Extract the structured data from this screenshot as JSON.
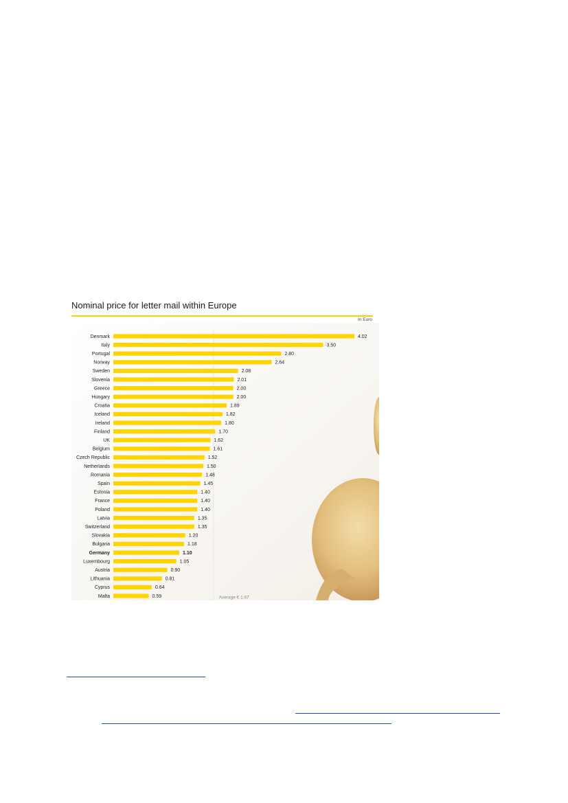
{
  "chart_data": {
    "type": "bar",
    "orientation": "horizontal",
    "title": "Nominal price for letter mail within Europe",
    "unit_label": "In Euro",
    "categories": [
      "Denmark",
      "Italy",
      "Portugal",
      "Norway",
      "Sweden",
      "Slovenia",
      "Greece",
      "Hungary",
      "Croatia",
      "Iceland",
      "Ireland",
      "Finland",
      "UK",
      "Belgium",
      "Czech Republic",
      "Netherlands",
      "Romania",
      "Spain",
      "Estonia",
      "France",
      "Poland",
      "Latvia",
      "Switzerland",
      "Slovakia",
      "Bulgaria",
      "Germany",
      "Luxembourg",
      "Austria",
      "Lithuania",
      "Cyprus",
      "Malta"
    ],
    "values": [
      4.02,
      3.5,
      2.8,
      2.64,
      2.08,
      2.01,
      2.0,
      2.0,
      1.89,
      1.82,
      1.8,
      1.7,
      1.62,
      1.61,
      1.52,
      1.5,
      1.48,
      1.45,
      1.4,
      1.4,
      1.4,
      1.35,
      1.35,
      1.2,
      1.18,
      1.1,
      1.05,
      0.9,
      0.81,
      0.64,
      0.59
    ],
    "value_labels": [
      "4.02",
      "3.50",
      "2.80",
      "2.64",
      "2.08",
      "2.01",
      "2.00",
      "2.00",
      "1.89",
      "1.82",
      "1.80",
      "1.70",
      "1.62",
      "1.61",
      "1.52",
      "1.50",
      "1.48",
      "1.45",
      "1.40",
      "1.40",
      "1.40",
      "1.35",
      "1.35",
      "1.20",
      "1.18",
      "1.10",
      "1.05",
      "0.90",
      "0.81",
      "0.64",
      "0.59"
    ],
    "highlight": "Germany",
    "average": 1.67,
    "average_label": "Average € 1.67",
    "xlim": [
      0,
      4.2
    ],
    "bar_color": "#ffd400",
    "grid": false
  }
}
